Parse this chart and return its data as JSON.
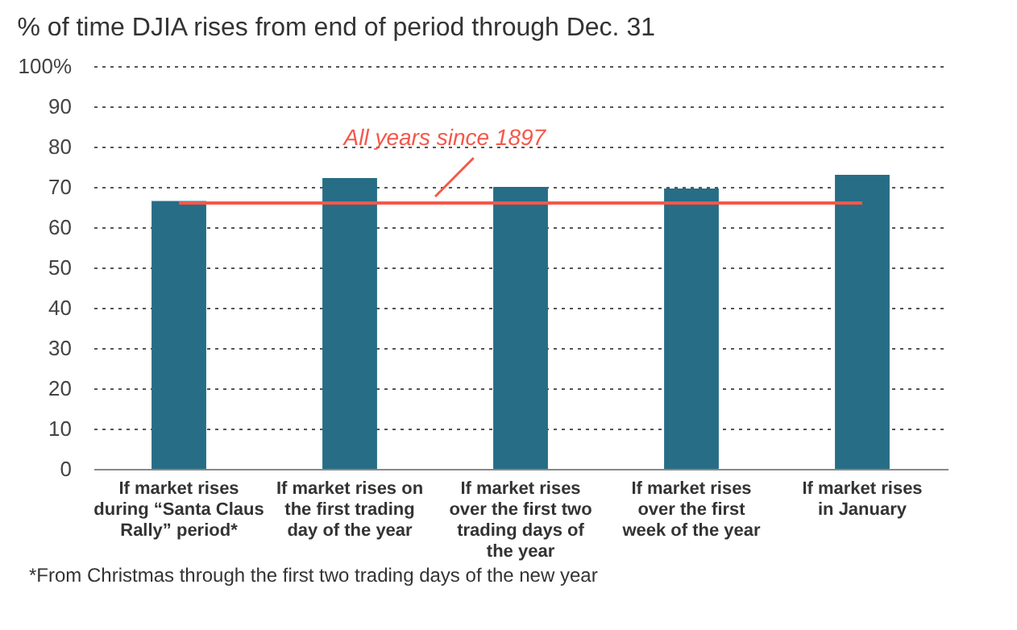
{
  "chart_data": {
    "type": "bar",
    "title": "% of time DJIA rises from end of period through Dec. 31",
    "categories": [
      "If market rises\nduring “Santa Claus\nRally” period*",
      "If market rises on\nthe first trading\nday of the year",
      "If market rises\nover the first two\ntrading days of\nthe year",
      "If market rises\nover the first\nweek of the year",
      "If market rises\nin January"
    ],
    "values": [
      66.5,
      72.2,
      70,
      69.6,
      73
    ],
    "color": "#276d86",
    "ylim": [
      0,
      100
    ],
    "yticks": [
      0,
      10,
      20,
      30,
      40,
      50,
      60,
      70,
      80,
      90,
      {
        "value": 100,
        "label": "100%"
      }
    ],
    "grid": "y",
    "ref_lines": [
      {
        "axis": "y",
        "value": 66,
        "label": "All years since 1897",
        "color": "#f4584a"
      }
    ],
    "annotations": [
      "*From Christmas through the first two trading days of the new year"
    ]
  }
}
